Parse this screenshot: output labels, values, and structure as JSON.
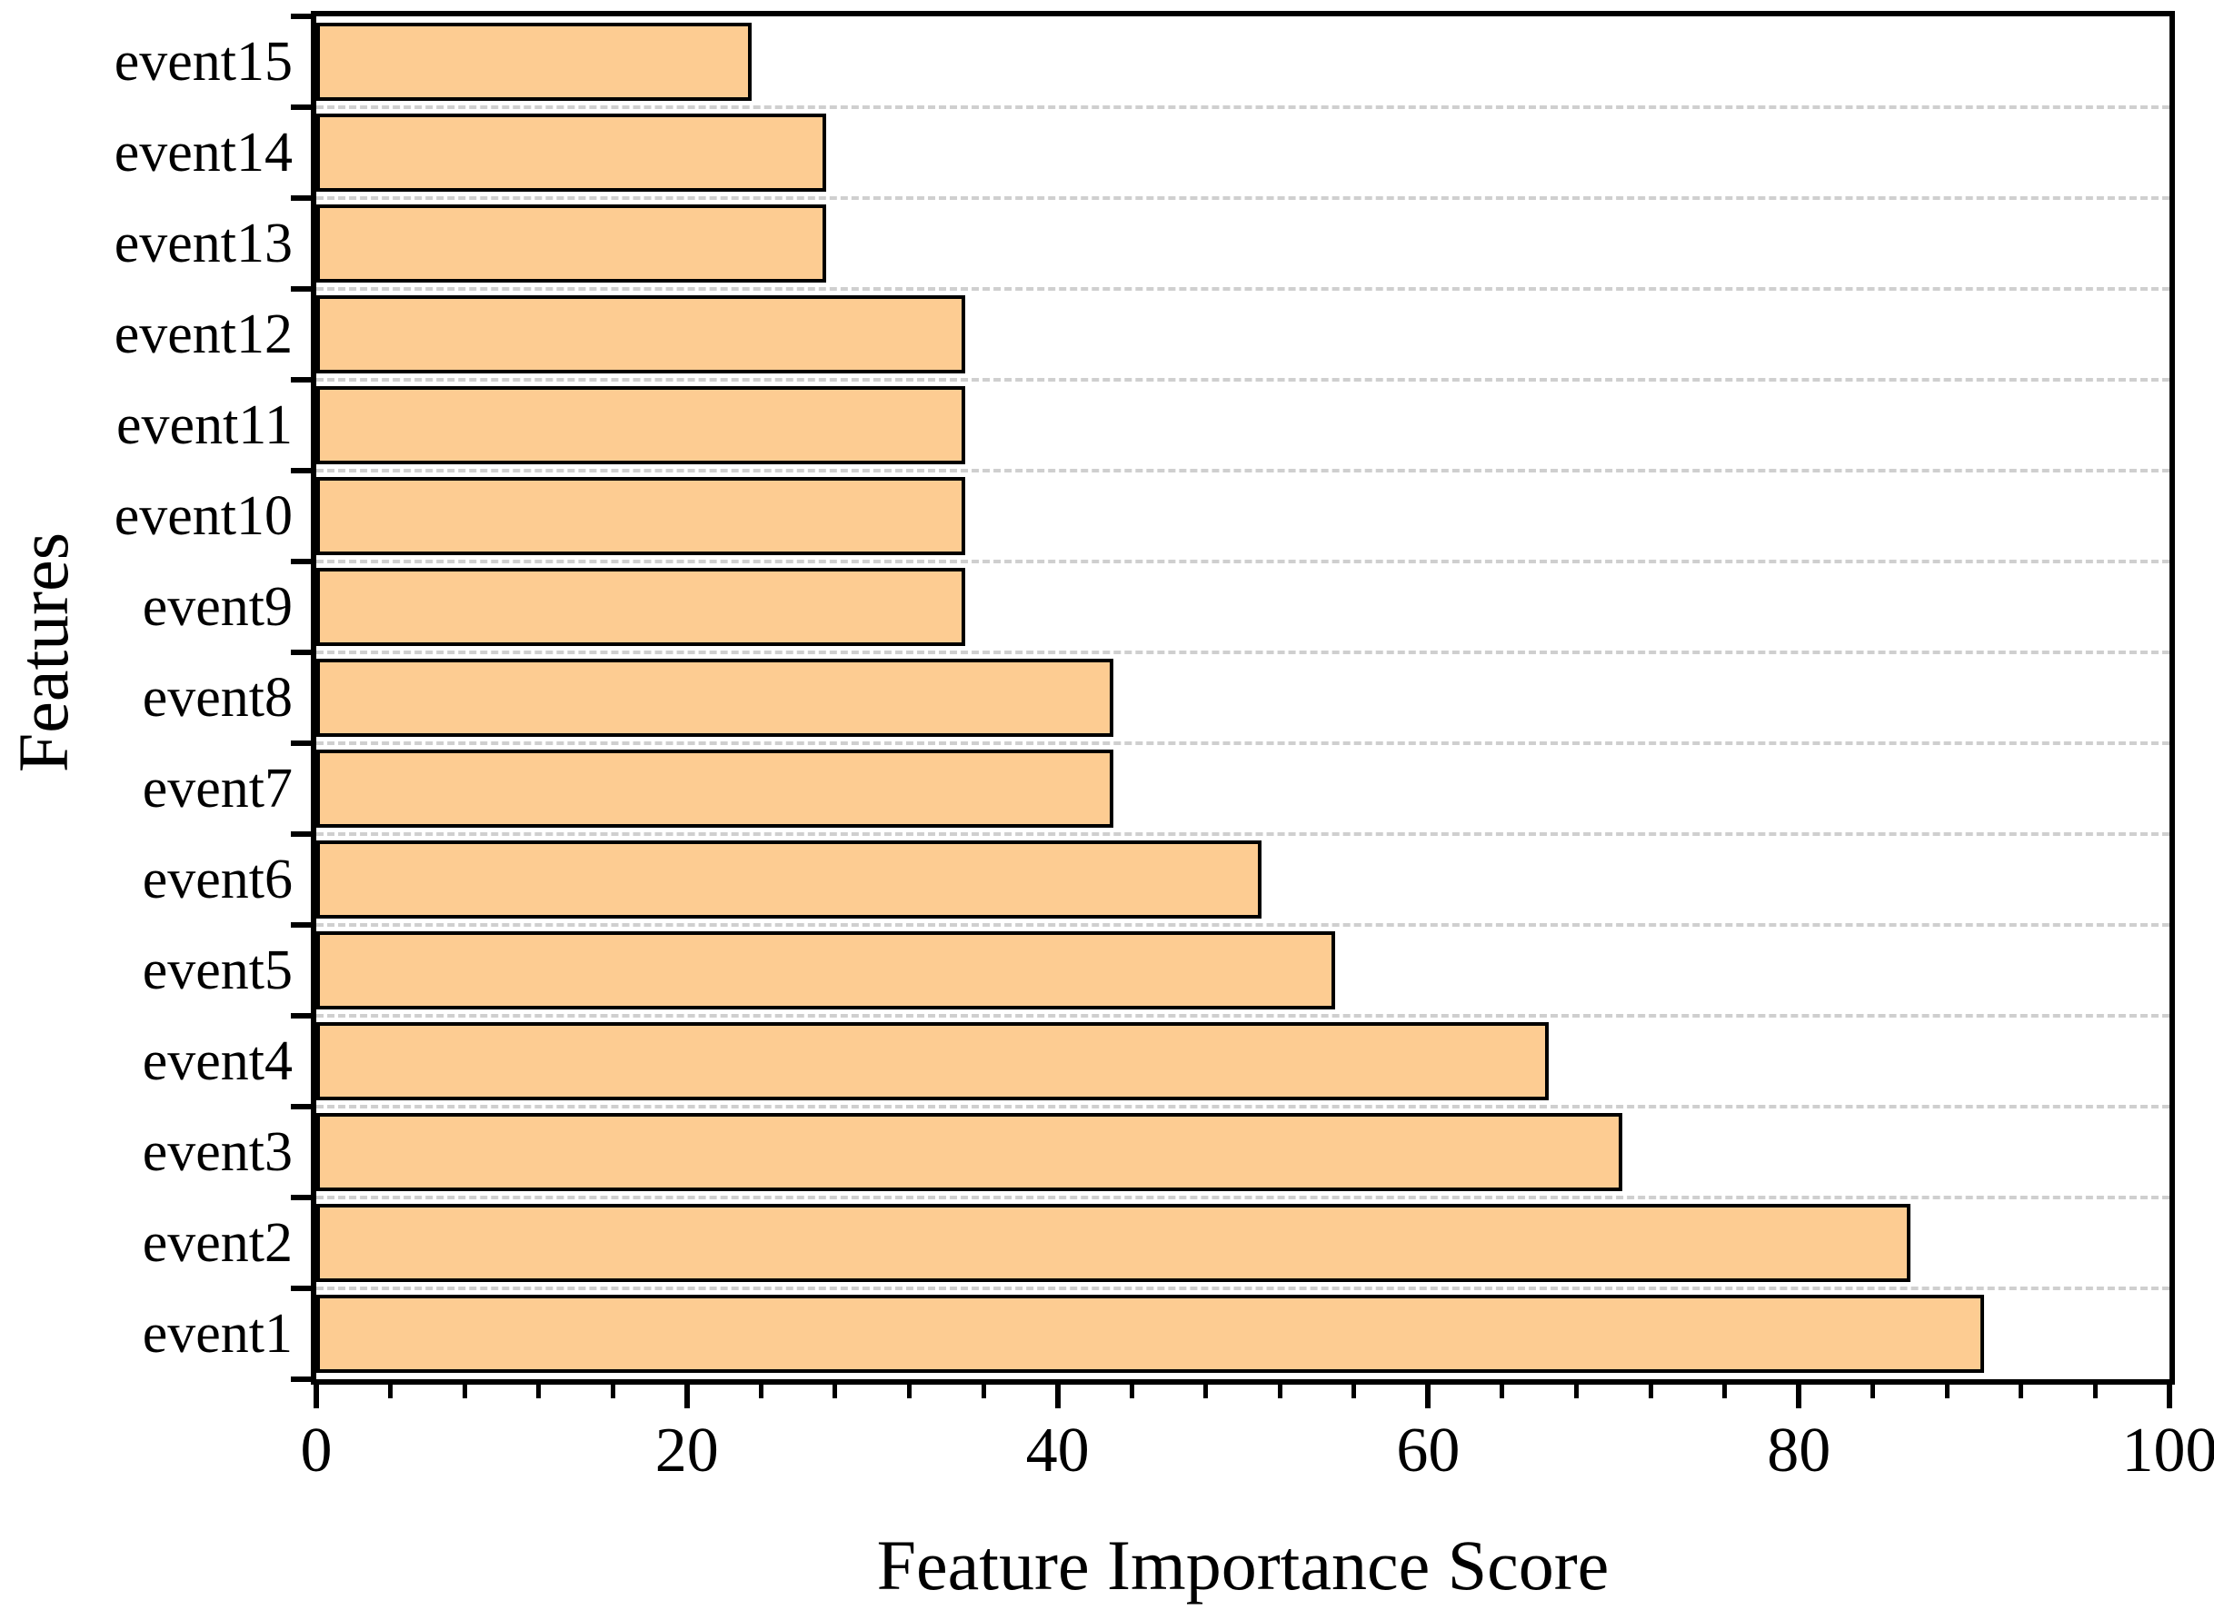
{
  "chart_data": {
    "type": "bar",
    "orientation": "horizontal",
    "title": "",
    "xlabel": "Feature Importance Score",
    "ylabel": "Features",
    "categories_top_to_bottom": [
      "event15",
      "event14",
      "event13",
      "event12",
      "event11",
      "event10",
      "event9",
      "event8",
      "event7",
      "event6",
      "event5",
      "event4",
      "event3",
      "event2",
      "event1"
    ],
    "values_top_to_bottom": [
      23.5,
      27.5,
      27.5,
      35,
      35,
      35,
      35,
      43,
      43,
      51,
      55,
      66.5,
      70.5,
      86,
      90
    ],
    "xlim": [
      0,
      100
    ],
    "x_major_ticks": [
      0,
      20,
      40,
      60,
      80,
      100
    ],
    "x_minor_tick_step": 4,
    "grid": "horizontal-dashed-between-rows",
    "legend": "none",
    "bar_fill_color": "#FDCC92",
    "bar_border_color": "#000000",
    "grid_color": "#CFCFCF",
    "axis_color": "#000000",
    "background_color": "#FFFFFF"
  }
}
